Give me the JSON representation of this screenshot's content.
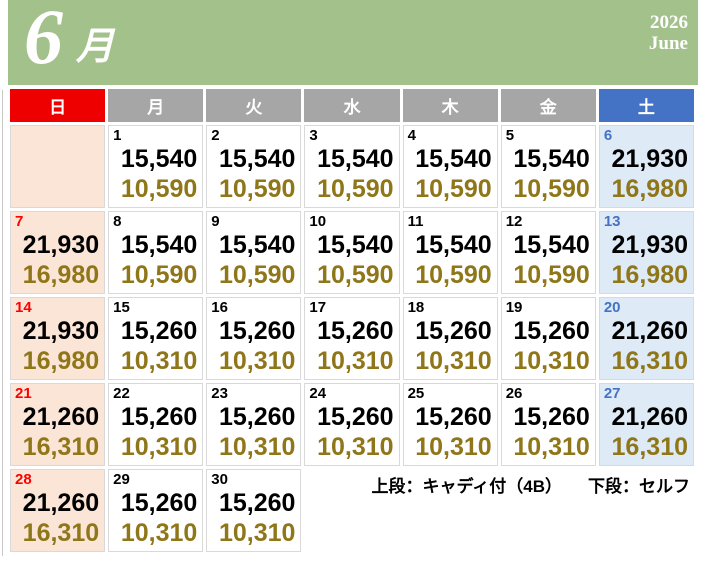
{
  "header": {
    "month_numeral": "6",
    "month_kanji": "月",
    "year": "2026",
    "month_en": "June"
  },
  "weekday_header": [
    {
      "label": "日",
      "type": "sunday",
      "name": "sun"
    },
    {
      "label": "月",
      "type": "weekday",
      "name": "mon"
    },
    {
      "label": "火",
      "type": "weekday",
      "name": "tue"
    },
    {
      "label": "水",
      "type": "weekday",
      "name": "wed"
    },
    {
      "label": "木",
      "type": "weekday",
      "name": "thu"
    },
    {
      "label": "金",
      "type": "weekday",
      "name": "fri"
    },
    {
      "label": "土",
      "type": "saturday",
      "name": "sat"
    }
  ],
  "colors": {
    "month_header_bg": "#A3C28B",
    "sunday_header_bg": "#EE0000",
    "weekday_header_bg": "#A6A6A6",
    "saturday_header_bg": "#4472C4",
    "sunday_cell_bg": "#FBE5D6",
    "weekday_cell_bg": "#FFFFFF",
    "saturday_cell_bg": "#DEEAF6",
    "sunday_date": "#FF0000",
    "weekday_date": "#000000",
    "saturday_date": "#4472C4",
    "price_caddie": "#000000",
    "price_self": "#8F7618"
  },
  "weeks": [
    [
      {
        "type": "sunday",
        "day": "",
        "caddie": "",
        "self": ""
      },
      {
        "type": "weekday",
        "day": "1",
        "caddie": "15,540",
        "self": "10,590"
      },
      {
        "type": "weekday",
        "day": "2",
        "caddie": "15,540",
        "self": "10,590"
      },
      {
        "type": "weekday",
        "day": "3",
        "caddie": "15,540",
        "self": "10,590"
      },
      {
        "type": "weekday",
        "day": "4",
        "caddie": "15,540",
        "self": "10,590"
      },
      {
        "type": "weekday",
        "day": "5",
        "caddie": "15,540",
        "self": "10,590"
      },
      {
        "type": "saturday",
        "day": "6",
        "caddie": "21,930",
        "self": "16,980"
      }
    ],
    [
      {
        "type": "sunday",
        "day": "7",
        "caddie": "21,930",
        "self": "16,980"
      },
      {
        "type": "weekday",
        "day": "8",
        "caddie": "15,540",
        "self": "10,590"
      },
      {
        "type": "weekday",
        "day": "9",
        "caddie": "15,540",
        "self": "10,590"
      },
      {
        "type": "weekday",
        "day": "10",
        "caddie": "15,540",
        "self": "10,590"
      },
      {
        "type": "weekday",
        "day": "11",
        "caddie": "15,540",
        "self": "10,590"
      },
      {
        "type": "weekday",
        "day": "12",
        "caddie": "15,540",
        "self": "10,590"
      },
      {
        "type": "saturday",
        "day": "13",
        "caddie": "21,930",
        "self": "16,980"
      }
    ],
    [
      {
        "type": "sunday",
        "day": "14",
        "caddie": "21,930",
        "self": "16,980"
      },
      {
        "type": "weekday",
        "day": "15",
        "caddie": "15,260",
        "self": "10,310"
      },
      {
        "type": "weekday",
        "day": "16",
        "caddie": "15,260",
        "self": "10,310"
      },
      {
        "type": "weekday",
        "day": "17",
        "caddie": "15,260",
        "self": "10,310"
      },
      {
        "type": "weekday",
        "day": "18",
        "caddie": "15,260",
        "self": "10,310"
      },
      {
        "type": "weekday",
        "day": "19",
        "caddie": "15,260",
        "self": "10,310"
      },
      {
        "type": "saturday",
        "day": "20",
        "caddie": "21,260",
        "self": "16,310"
      }
    ],
    [
      {
        "type": "sunday",
        "day": "21",
        "caddie": "21,260",
        "self": "16,310"
      },
      {
        "type": "weekday",
        "day": "22",
        "caddie": "15,260",
        "self": "10,310"
      },
      {
        "type": "weekday",
        "day": "23",
        "caddie": "15,260",
        "self": "10,310"
      },
      {
        "type": "weekday",
        "day": "24",
        "caddie": "15,260",
        "self": "10,310"
      },
      {
        "type": "weekday",
        "day": "25",
        "caddie": "15,260",
        "self": "10,310"
      },
      {
        "type": "weekday",
        "day": "26",
        "caddie": "15,260",
        "self": "10,310"
      },
      {
        "type": "saturday",
        "day": "27",
        "caddie": "21,260",
        "self": "16,310"
      }
    ],
    [
      {
        "type": "sunday",
        "day": "28",
        "caddie": "21,260",
        "self": "16,310"
      },
      {
        "type": "weekday",
        "day": "29",
        "caddie": "15,260",
        "self": "10,310"
      },
      {
        "type": "weekday",
        "day": "30",
        "caddie": "15,260",
        "self": "10,310"
      },
      {
        "type": "blank"
      },
      {
        "type": "blank"
      },
      {
        "type": "blank"
      },
      {
        "type": "blank"
      }
    ]
  ],
  "legend": {
    "caddie_note": "上段：キャディ付（4B）",
    "self_note": "下段：セルフ"
  }
}
